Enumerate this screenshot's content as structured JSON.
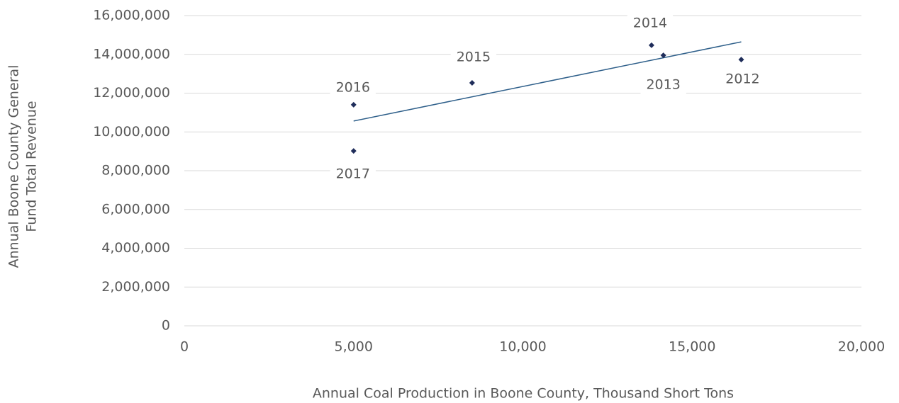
{
  "chart_data": {
    "type": "scatter",
    "xlabel": "Annual Coal Production in Boone County, Thousand Short Tons",
    "ylabel": [
      "Annual Boone County General",
      "Fund Total Revenue"
    ],
    "labels": [
      "2012",
      "2013",
      "2014",
      "2015",
      "2016",
      "2017"
    ],
    "x": [
      16450,
      14150,
      13800,
      8500,
      5000,
      5000
    ],
    "values": [
      13730000,
      13950000,
      14470000,
      12530000,
      11400000,
      9020000
    ],
    "color": "#1f2d5a",
    "trendline": true,
    "trendline_color": "#2e5f8a",
    "xlim": [
      0,
      20000
    ],
    "xticks": [
      0,
      {
        "value": 5000,
        "label": "5,000"
      },
      {
        "value": 10000,
        "label": "10,000"
      },
      {
        "value": 15000,
        "label": "15,000"
      },
      {
        "value": 20000,
        "label": "20,000"
      }
    ],
    "ylim": [
      0,
      16000000
    ],
    "yticks": [
      0,
      {
        "value": 2000000,
        "label": "2,000,000"
      },
      {
        "value": 4000000,
        "label": "4,000,000"
      },
      {
        "value": 6000000,
        "label": "6,000,000"
      },
      {
        "value": 8000000,
        "label": "8,000,000"
      },
      {
        "value": 10000000,
        "label": "10,000,000"
      },
      {
        "value": 12000000,
        "label": "12,000,000"
      },
      {
        "value": 14000000,
        "label": "14,000,000"
      },
      {
        "value": 16000000,
        "label": "16,000,000"
      }
    ],
    "grid": true
  }
}
